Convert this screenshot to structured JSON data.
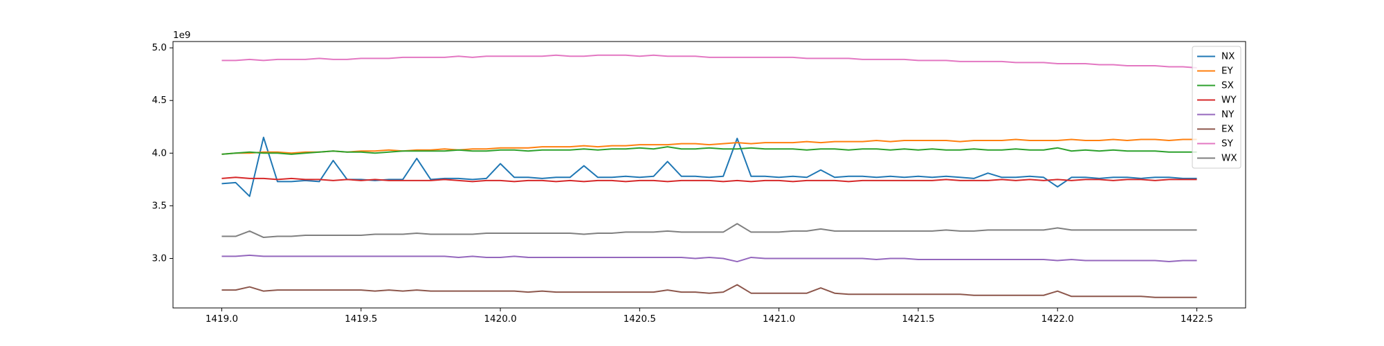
{
  "chart_data": {
    "type": "line",
    "y_offset_label": "1e9",
    "x": [
      1419,
      1419.05,
      1419.1,
      1419.15,
      1419.2,
      1419.25,
      1419.3,
      1419.35,
      1419.4,
      1419.45,
      1419.5,
      1419.55,
      1419.6,
      1419.65,
      1419.7,
      1419.75,
      1419.8,
      1419.85,
      1419.9,
      1419.95,
      1420,
      1420.05,
      1420.1,
      1420.15,
      1420.2,
      1420.25,
      1420.3,
      1420.35,
      1420.4,
      1420.45,
      1420.5,
      1420.55,
      1420.6,
      1420.65,
      1420.7,
      1420.75,
      1420.8,
      1420.85,
      1420.9,
      1420.95,
      1421,
      1421.05,
      1421.1,
      1421.15,
      1421.2,
      1421.25,
      1421.3,
      1421.35,
      1421.4,
      1421.45,
      1421.5,
      1421.55,
      1421.6,
      1421.65,
      1421.7,
      1421.75,
      1421.8,
      1421.85,
      1421.9,
      1421.95,
      1422,
      1422.05,
      1422.1,
      1422.15,
      1422.2,
      1422.25,
      1422.3,
      1422.35,
      1422.4,
      1422.45,
      1422.5
    ],
    "series": [
      {
        "name": "NX",
        "color": "#1f77b4",
        "values": [
          3710000000.0,
          3720000000.0,
          3590000000.0,
          4150000000.0,
          3730000000.0,
          3730000000.0,
          3740000000.0,
          3730000000.0,
          3930000000.0,
          3750000000.0,
          3750000000.0,
          3740000000.0,
          3750000000.0,
          3750000000.0,
          3950000000.0,
          3750000000.0,
          3760000000.0,
          3760000000.0,
          3750000000.0,
          3760000000.0,
          3900000000.0,
          3770000000.0,
          3770000000.0,
          3760000000.0,
          3770000000.0,
          3770000000.0,
          3880000000.0,
          3770000000.0,
          3770000000.0,
          3780000000.0,
          3770000000.0,
          3780000000.0,
          3920000000.0,
          3780000000.0,
          3780000000.0,
          3770000000.0,
          3780000000.0,
          4140000000.0,
          3780000000.0,
          3780000000.0,
          3770000000.0,
          3780000000.0,
          3770000000.0,
          3840000000.0,
          3770000000.0,
          3780000000.0,
          3780000000.0,
          3770000000.0,
          3780000000.0,
          3770000000.0,
          3780000000.0,
          3770000000.0,
          3780000000.0,
          3770000000.0,
          3760000000.0,
          3810000000.0,
          3770000000.0,
          3770000000.0,
          3780000000.0,
          3770000000.0,
          3680000000.0,
          3770000000.0,
          3770000000.0,
          3760000000.0,
          3770000000.0,
          3770000000.0,
          3760000000.0,
          3770000000.0,
          3770000000.0,
          3760000000.0,
          3760000000.0
        ]
      },
      {
        "name": "EY",
        "color": "#ff7f0e",
        "values": [
          3990000000.0,
          4000000000.0,
          4000000000.0,
          4010000000.0,
          4010000000.0,
          4000000000.0,
          4010000000.0,
          4010000000.0,
          4020000000.0,
          4010000000.0,
          4020000000.0,
          4020000000.0,
          4030000000.0,
          4020000000.0,
          4030000000.0,
          4030000000.0,
          4040000000.0,
          4030000000.0,
          4040000000.0,
          4040000000.0,
          4050000000.0,
          4050000000.0,
          4050000000.0,
          4060000000.0,
          4060000000.0,
          4060000000.0,
          4070000000.0,
          4060000000.0,
          4070000000.0,
          4070000000.0,
          4080000000.0,
          4080000000.0,
          4080000000.0,
          4090000000.0,
          4090000000.0,
          4080000000.0,
          4090000000.0,
          4100000000.0,
          4090000000.0,
          4100000000.0,
          4100000000.0,
          4100000000.0,
          4110000000.0,
          4100000000.0,
          4110000000.0,
          4110000000.0,
          4110000000.0,
          4120000000.0,
          4110000000.0,
          4120000000.0,
          4120000000.0,
          4120000000.0,
          4120000000.0,
          4110000000.0,
          4120000000.0,
          4120000000.0,
          4120000000.0,
          4130000000.0,
          4120000000.0,
          4120000000.0,
          4120000000.0,
          4130000000.0,
          4120000000.0,
          4120000000.0,
          4130000000.0,
          4120000000.0,
          4130000000.0,
          4130000000.0,
          4120000000.0,
          4130000000.0,
          4130000000.0
        ]
      },
      {
        "name": "SX",
        "color": "#2ca02c",
        "values": [
          3990000000.0,
          4000000000.0,
          4010000000.0,
          4000000000.0,
          4000000000.0,
          3990000000.0,
          4000000000.0,
          4010000000.0,
          4020000000.0,
          4010000000.0,
          4010000000.0,
          4000000000.0,
          4010000000.0,
          4020000000.0,
          4020000000.0,
          4020000000.0,
          4020000000.0,
          4030000000.0,
          4020000000.0,
          4020000000.0,
          4030000000.0,
          4030000000.0,
          4020000000.0,
          4030000000.0,
          4030000000.0,
          4030000000.0,
          4040000000.0,
          4030000000.0,
          4040000000.0,
          4040000000.0,
          4050000000.0,
          4040000000.0,
          4060000000.0,
          4040000000.0,
          4040000000.0,
          4050000000.0,
          4040000000.0,
          4040000000.0,
          4050000000.0,
          4040000000.0,
          4040000000.0,
          4040000000.0,
          4030000000.0,
          4040000000.0,
          4040000000.0,
          4030000000.0,
          4040000000.0,
          4040000000.0,
          4030000000.0,
          4040000000.0,
          4030000000.0,
          4040000000.0,
          4030000000.0,
          4030000000.0,
          4040000000.0,
          4030000000.0,
          4030000000.0,
          4040000000.0,
          4030000000.0,
          4030000000.0,
          4050000000.0,
          4020000000.0,
          4030000000.0,
          4020000000.0,
          4030000000.0,
          4020000000.0,
          4020000000.0,
          4020000000.0,
          4010000000.0,
          4010000000.0,
          4010000000.0
        ]
      },
      {
        "name": "WY",
        "color": "#d62728",
        "values": [
          3760000000.0,
          3770000000.0,
          3760000000.0,
          3760000000.0,
          3750000000.0,
          3760000000.0,
          3750000000.0,
          3750000000.0,
          3740000000.0,
          3750000000.0,
          3740000000.0,
          3750000000.0,
          3740000000.0,
          3740000000.0,
          3740000000.0,
          3740000000.0,
          3750000000.0,
          3740000000.0,
          3730000000.0,
          3740000000.0,
          3740000000.0,
          3730000000.0,
          3740000000.0,
          3740000000.0,
          3730000000.0,
          3740000000.0,
          3730000000.0,
          3740000000.0,
          3740000000.0,
          3730000000.0,
          3740000000.0,
          3740000000.0,
          3730000000.0,
          3740000000.0,
          3740000000.0,
          3740000000.0,
          3730000000.0,
          3740000000.0,
          3730000000.0,
          3740000000.0,
          3740000000.0,
          3730000000.0,
          3740000000.0,
          3740000000.0,
          3740000000.0,
          3730000000.0,
          3740000000.0,
          3740000000.0,
          3740000000.0,
          3740000000.0,
          3740000000.0,
          3740000000.0,
          3750000000.0,
          3740000000.0,
          3740000000.0,
          3740000000.0,
          3750000000.0,
          3740000000.0,
          3750000000.0,
          3740000000.0,
          3750000000.0,
          3740000000.0,
          3750000000.0,
          3750000000.0,
          3740000000.0,
          3750000000.0,
          3750000000.0,
          3740000000.0,
          3750000000.0,
          3750000000.0,
          3750000000.0
        ]
      },
      {
        "name": "NY",
        "color": "#9467bd",
        "values": [
          3020000000.0,
          3020000000.0,
          3030000000.0,
          3020000000.0,
          3020000000.0,
          3020000000.0,
          3020000000.0,
          3020000000.0,
          3020000000.0,
          3020000000.0,
          3020000000.0,
          3020000000.0,
          3020000000.0,
          3020000000.0,
          3020000000.0,
          3020000000.0,
          3020000000.0,
          3010000000.0,
          3020000000.0,
          3010000000.0,
          3010000000.0,
          3020000000.0,
          3010000000.0,
          3010000000.0,
          3010000000.0,
          3010000000.0,
          3010000000.0,
          3010000000.0,
          3010000000.0,
          3010000000.0,
          3010000000.0,
          3010000000.0,
          3010000000.0,
          3010000000.0,
          3000000000.0,
          3010000000.0,
          3000000000.0,
          2970000000.0,
          3010000000.0,
          3000000000.0,
          3000000000.0,
          3000000000.0,
          3000000000.0,
          3000000000.0,
          3000000000.0,
          3000000000.0,
          3000000000.0,
          2990000000.0,
          3000000000.0,
          3000000000.0,
          2990000000.0,
          2990000000.0,
          2990000000.0,
          2990000000.0,
          2990000000.0,
          2990000000.0,
          2990000000.0,
          2990000000.0,
          2990000000.0,
          2990000000.0,
          2980000000.0,
          2990000000.0,
          2980000000.0,
          2980000000.0,
          2980000000.0,
          2980000000.0,
          2980000000.0,
          2980000000.0,
          2970000000.0,
          2980000000.0,
          2980000000.0
        ]
      },
      {
        "name": "EX",
        "color": "#8c564b",
        "values": [
          2700000000.0,
          2700000000.0,
          2730000000.0,
          2690000000.0,
          2700000000.0,
          2700000000.0,
          2700000000.0,
          2700000000.0,
          2700000000.0,
          2700000000.0,
          2700000000.0,
          2690000000.0,
          2700000000.0,
          2690000000.0,
          2700000000.0,
          2690000000.0,
          2690000000.0,
          2690000000.0,
          2690000000.0,
          2690000000.0,
          2690000000.0,
          2690000000.0,
          2680000000.0,
          2690000000.0,
          2680000000.0,
          2680000000.0,
          2680000000.0,
          2680000000.0,
          2680000000.0,
          2680000000.0,
          2680000000.0,
          2680000000.0,
          2700000000.0,
          2680000000.0,
          2680000000.0,
          2670000000.0,
          2680000000.0,
          2750000000.0,
          2670000000.0,
          2670000000.0,
          2670000000.0,
          2670000000.0,
          2670000000.0,
          2720000000.0,
          2670000000.0,
          2660000000.0,
          2660000000.0,
          2660000000.0,
          2660000000.0,
          2660000000.0,
          2660000000.0,
          2660000000.0,
          2660000000.0,
          2660000000.0,
          2650000000.0,
          2650000000.0,
          2650000000.0,
          2650000000.0,
          2650000000.0,
          2650000000.0,
          2690000000.0,
          2640000000.0,
          2640000000.0,
          2640000000.0,
          2640000000.0,
          2640000000.0,
          2640000000.0,
          2630000000.0,
          2630000000.0,
          2630000000.0,
          2630000000.0
        ]
      },
      {
        "name": "SY",
        "color": "#e377c2",
        "values": [
          4880000000.0,
          4880000000.0,
          4890000000.0,
          4880000000.0,
          4890000000.0,
          4890000000.0,
          4890000000.0,
          4900000000.0,
          4890000000.0,
          4890000000.0,
          4900000000.0,
          4900000000.0,
          4900000000.0,
          4910000000.0,
          4910000000.0,
          4910000000.0,
          4910000000.0,
          4920000000.0,
          4910000000.0,
          4920000000.0,
          4920000000.0,
          4920000000.0,
          4920000000.0,
          4920000000.0,
          4930000000.0,
          4920000000.0,
          4920000000.0,
          4930000000.0,
          4930000000.0,
          4930000000.0,
          4920000000.0,
          4930000000.0,
          4920000000.0,
          4920000000.0,
          4920000000.0,
          4910000000.0,
          4910000000.0,
          4910000000.0,
          4910000000.0,
          4910000000.0,
          4910000000.0,
          4910000000.0,
          4900000000.0,
          4900000000.0,
          4900000000.0,
          4900000000.0,
          4890000000.0,
          4890000000.0,
          4890000000.0,
          4890000000.0,
          4880000000.0,
          4880000000.0,
          4880000000.0,
          4870000000.0,
          4870000000.0,
          4870000000.0,
          4870000000.0,
          4860000000.0,
          4860000000.0,
          4860000000.0,
          4850000000.0,
          4850000000.0,
          4850000000.0,
          4840000000.0,
          4840000000.0,
          4830000000.0,
          4830000000.0,
          4830000000.0,
          4820000000.0,
          4820000000.0,
          4810000000.0
        ]
      },
      {
        "name": "WX",
        "color": "#7f7f7f",
        "values": [
          3210000000.0,
          3210000000.0,
          3260000000.0,
          3200000000.0,
          3210000000.0,
          3210000000.0,
          3220000000.0,
          3220000000.0,
          3220000000.0,
          3220000000.0,
          3220000000.0,
          3230000000.0,
          3230000000.0,
          3230000000.0,
          3240000000.0,
          3230000000.0,
          3230000000.0,
          3230000000.0,
          3230000000.0,
          3240000000.0,
          3240000000.0,
          3240000000.0,
          3240000000.0,
          3240000000.0,
          3240000000.0,
          3240000000.0,
          3230000000.0,
          3240000000.0,
          3240000000.0,
          3250000000.0,
          3250000000.0,
          3250000000.0,
          3260000000.0,
          3250000000.0,
          3250000000.0,
          3250000000.0,
          3250000000.0,
          3330000000.0,
          3250000000.0,
          3250000000.0,
          3250000000.0,
          3260000000.0,
          3260000000.0,
          3280000000.0,
          3260000000.0,
          3260000000.0,
          3260000000.0,
          3260000000.0,
          3260000000.0,
          3260000000.0,
          3260000000.0,
          3260000000.0,
          3270000000.0,
          3260000000.0,
          3260000000.0,
          3270000000.0,
          3270000000.0,
          3270000000.0,
          3270000000.0,
          3270000000.0,
          3290000000.0,
          3270000000.0,
          3270000000.0,
          3270000000.0,
          3270000000.0,
          3270000000.0,
          3270000000.0,
          3270000000.0,
          3270000000.0,
          3270000000.0,
          3270000000.0
        ]
      }
    ],
    "xlim": [
      1418.825,
      1422.675
    ],
    "xticks": [
      {
        "value": 1419,
        "label": "1419.0"
      },
      {
        "value": 1419.5,
        "label": "1419.5"
      },
      {
        "value": 1420,
        "label": "1420.0"
      },
      {
        "value": 1420.5,
        "label": "1420.5"
      },
      {
        "value": 1421,
        "label": "1421.0"
      },
      {
        "value": 1421.5,
        "label": "1421.5"
      },
      {
        "value": 1422,
        "label": "1422.0"
      },
      {
        "value": 1422.5,
        "label": "1422.5"
      }
    ],
    "ylim": [
      2530000000.0,
      5060000000.0
    ],
    "yticks": [
      {
        "value": 3000000000.0,
        "label": "3.0"
      },
      {
        "value": 3500000000.0,
        "label": "3.5"
      },
      {
        "value": 4000000000.0,
        "label": "4.0"
      },
      {
        "value": 4500000000.0,
        "label": "4.5"
      },
      {
        "value": 5000000000.0,
        "label": "5.0"
      }
    ],
    "grid": false,
    "legend_position": "upper right"
  }
}
